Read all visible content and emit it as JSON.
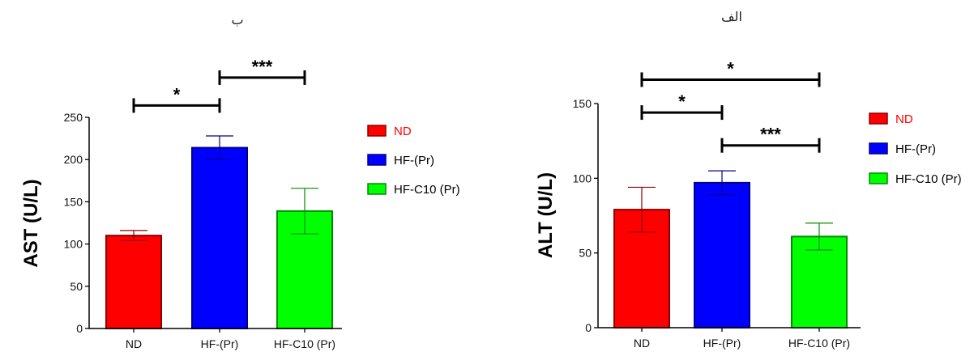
{
  "panels": [
    {
      "letter": "ب",
      "ylabel": "AST (U/L)"
    },
    {
      "letter": "الف",
      "ylabel": "ALT (U/L)"
    }
  ],
  "chart_data": [
    {
      "type": "bar",
      "title": "",
      "xlabel": "",
      "ylabel": "AST (U/L)",
      "ylim": [
        0,
        250
      ],
      "yticks": [
        "0",
        "50",
        "100",
        "150",
        "200",
        "250"
      ],
      "categories": [
        "ND",
        "HF-(Pr)",
        "HF-C10 (Pr)"
      ],
      "values": [
        110,
        214,
        139
      ],
      "errors": [
        6,
        14,
        27
      ],
      "colors": [
        "#ff0000",
        "#0000ff",
        "#00ff00"
      ],
      "legend": [
        {
          "label": "ND",
          "color": "#ff0000",
          "text_color": "#ff0000"
        },
        {
          "label": "HF-(Pr)",
          "color": "#0000ff",
          "text_color": "#000000"
        },
        {
          "label": "HF-C10 (Pr)",
          "color": "#00ff00",
          "text_color": "#000000"
        }
      ],
      "legend_position": "right",
      "significance": [
        {
          "from": "ND",
          "to": "HF-(Pr)",
          "label": "*",
          "y": 264
        },
        {
          "from": "HF-(Pr)",
          "to": "HF-C10 (Pr)",
          "label": "***",
          "y": 297
        }
      ]
    },
    {
      "type": "bar",
      "title": "",
      "xlabel": "",
      "ylabel": "ALT (U/L)",
      "ylim": [
        0,
        150
      ],
      "yticks": [
        "0",
        "50",
        "100",
        "150"
      ],
      "categories": [
        "ND",
        "HF-(Pr)",
        "HF-C10 (Pr)"
      ],
      "values": [
        79,
        97,
        61
      ],
      "errors": [
        15,
        8,
        9
      ],
      "colors": [
        "#ff0000",
        "#0000ff",
        "#00ff00"
      ],
      "legend": [
        {
          "label": "ND",
          "color": "#ff0000",
          "text_color": "#ff0000"
        },
        {
          "label": "HF-(Pr)",
          "color": "#0000ff",
          "text_color": "#000000"
        },
        {
          "label": "HF-C10 (Pr)",
          "color": "#00ff00",
          "text_color": "#000000"
        }
      ],
      "legend_position": "right",
      "significance": [
        {
          "from": "ND",
          "to": "HF-(Pr)",
          "label": "*",
          "y": 144
        },
        {
          "from": "HF-(Pr)",
          "to": "HF-C10 (Pr)",
          "label": "***",
          "y": 122
        },
        {
          "from": "ND",
          "to": "HF-C10 (Pr)",
          "label": "*",
          "y": 166
        }
      ]
    }
  ]
}
